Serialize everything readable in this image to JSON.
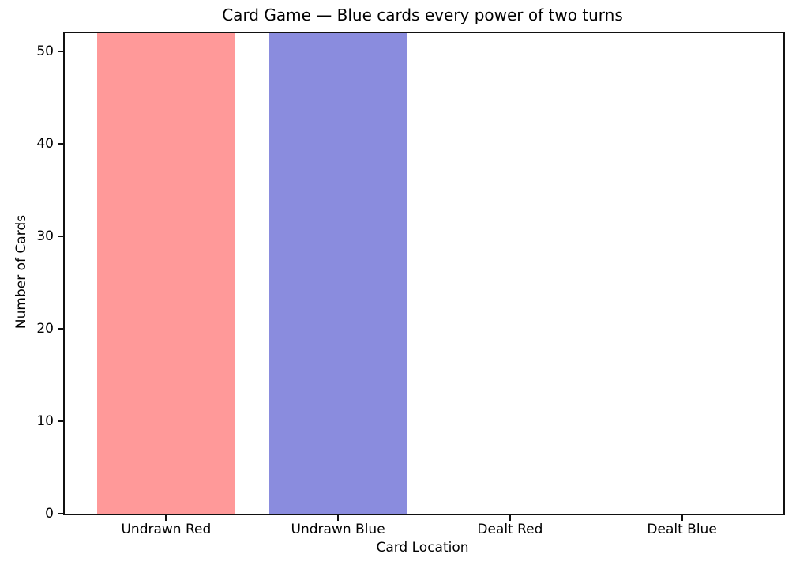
{
  "chart_data": {
    "type": "bar",
    "title": "Card Game — Blue cards every power of two turns",
    "xlabel": "Card Location",
    "ylabel": "Number of Cards",
    "categories": [
      "Undrawn Red",
      "Undrawn Blue",
      "Dealt Red",
      "Dealt Blue"
    ],
    "values": [
      52,
      52,
      0,
      0
    ],
    "bar_colors": [
      "#ff9999",
      "#8a8cde",
      "#ff9999",
      "#8a8cde"
    ],
    "ylim": [
      0,
      52
    ],
    "yticks": [
      0,
      10,
      20,
      30,
      40,
      50
    ],
    "bar_width_fraction": 0.8,
    "grid": false,
    "legend_position": "none",
    "axis_color": "#111111",
    "background_color": "#ffffff"
  }
}
